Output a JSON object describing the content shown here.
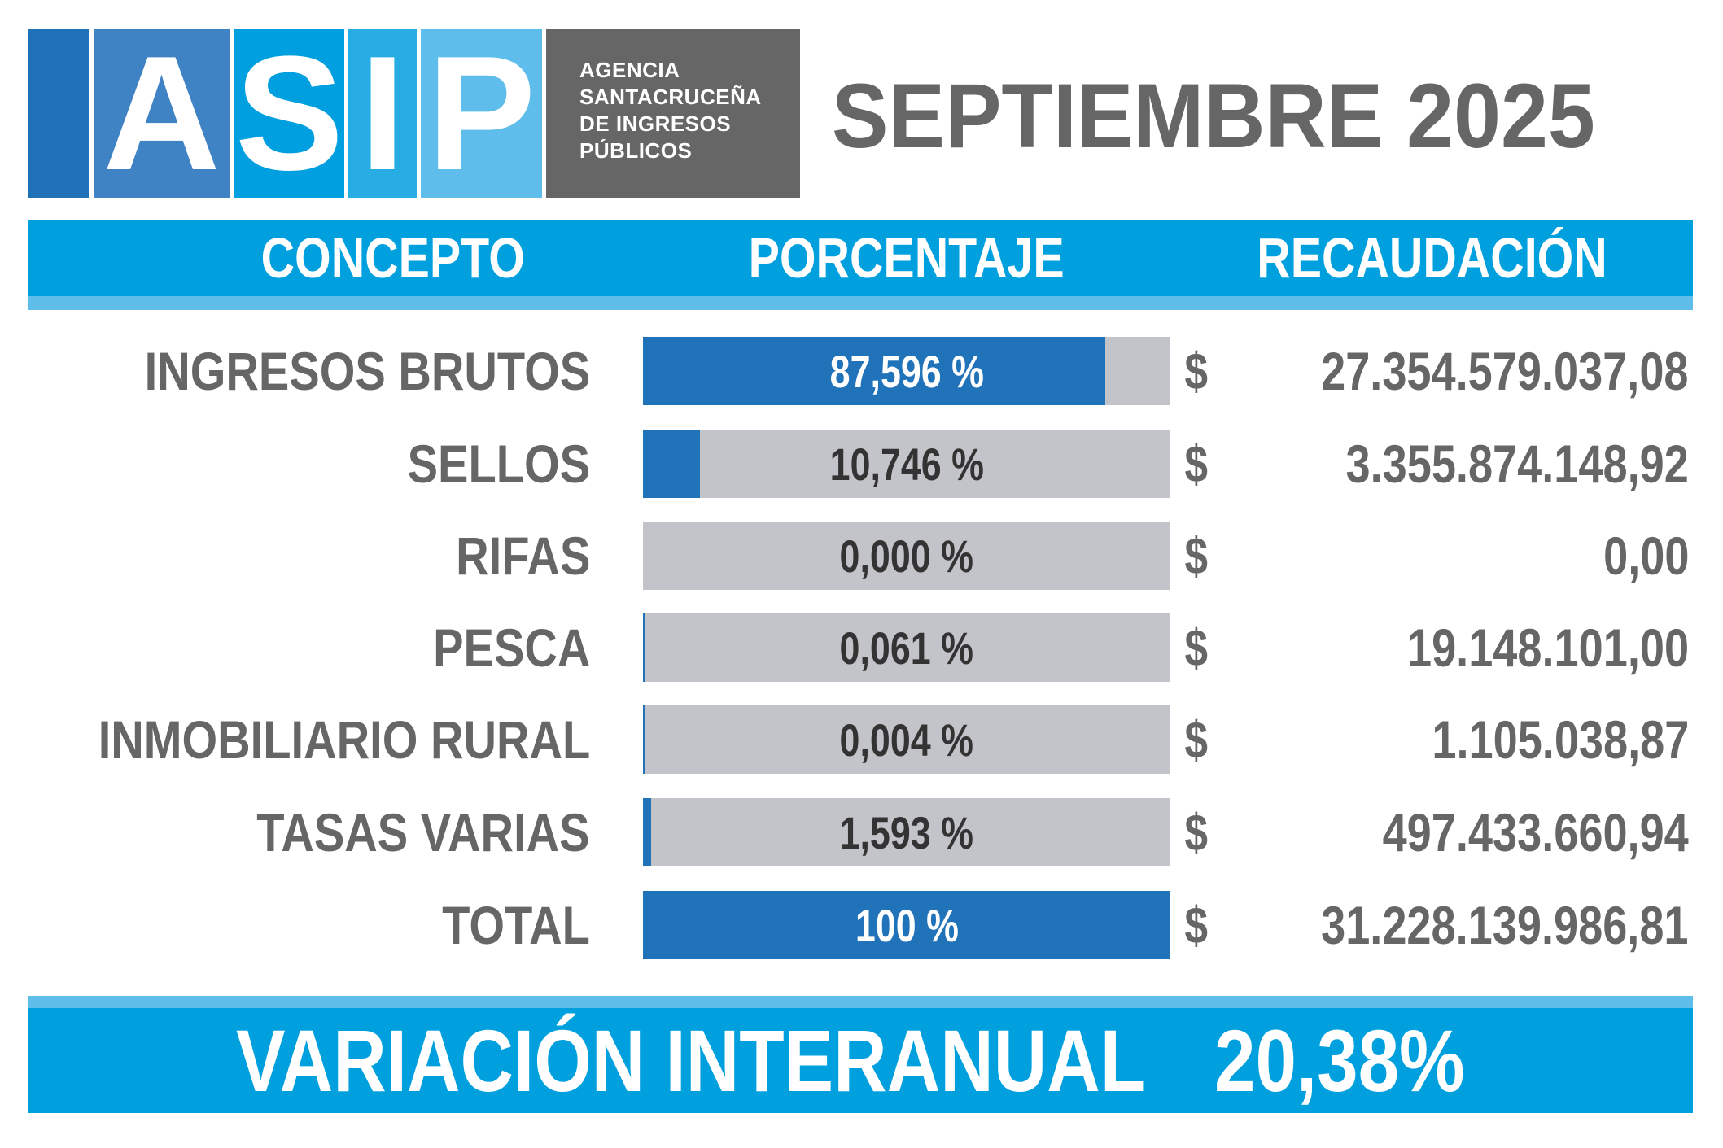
{
  "logo": {
    "letters": [
      "A",
      "S",
      "I",
      "P"
    ],
    "agency_lines": [
      "AGENCIA",
      "SANTACRUCEÑA",
      "DE INGRESOS",
      "PÚBLICOS"
    ],
    "colors": {
      "bar": "#1f71b8",
      "a": "#4083c4",
      "s": "#009fdf",
      "i": "#27ade4",
      "p": "#5fbdeb",
      "gray": "#666666"
    }
  },
  "title": "SEPTIEMBRE 2025",
  "header": {
    "concepto": "CONCEPTO",
    "porcentaje": "PORCENTAJE",
    "recaudacion": "RECAUDACIÓN"
  },
  "currency_symbol": "$",
  "rows": [
    {
      "concepto": "INGRESOS BRUTOS",
      "porcentaje_label": "87,596 %",
      "porcentaje": 87.596,
      "recaudacion": "27.354.579.037,08"
    },
    {
      "concepto": "SELLOS",
      "porcentaje_label": "10,746 %",
      "porcentaje": 10.746,
      "recaudacion": "3.355.874.148,92"
    },
    {
      "concepto": "RIFAS",
      "porcentaje_label": "0,000 %",
      "porcentaje": 0,
      "recaudacion": "0,00"
    },
    {
      "concepto": "PESCA",
      "porcentaje_label": "0,061 %",
      "porcentaje": 0.061,
      "recaudacion": "19.148.101,00"
    },
    {
      "concepto": "INMOBILIARIO RURAL",
      "porcentaje_label": "0,004 %",
      "porcentaje": 0.004,
      "recaudacion": "1.105.038,87"
    },
    {
      "concepto": "TASAS VARIAS",
      "porcentaje_label": "1,593 %",
      "porcentaje": 1.593,
      "recaudacion": "497.433.660,94"
    },
    {
      "concepto": "TOTAL",
      "porcentaje_label": "100 %",
      "porcentaje": 100,
      "recaudacion": "31.228.139.986,81"
    }
  ],
  "footer": {
    "label": "VARIACIÓN INTERANUAL",
    "value": "20,38%"
  }
}
